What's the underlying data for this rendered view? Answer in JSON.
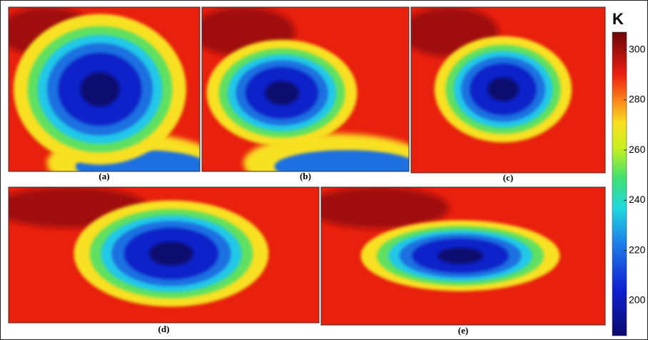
{
  "panels": [
    {
      "label": "(a)"
    },
    {
      "label": "(b)"
    },
    {
      "label": "(c)"
    },
    {
      "label": "(d)"
    },
    {
      "label": "(e)"
    }
  ],
  "colorbar": {
    "unit": "K",
    "lim": [
      186,
      307
    ],
    "ticks": [
      200,
      220,
      240,
      260,
      280,
      300
    ]
  }
}
